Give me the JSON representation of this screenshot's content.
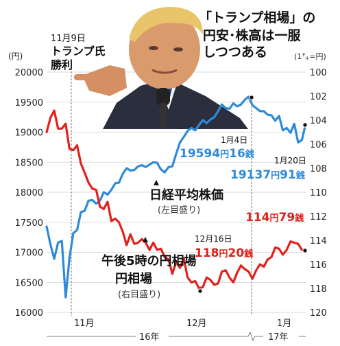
{
  "headline": {
    "line1": "「トランプ相場」の",
    "line2": "円安･株高は一服",
    "line3": "しつつある"
  },
  "chart_data": {
    "type": "line",
    "left_axis": {
      "unit_label": "(円)",
      "range": [
        16000,
        20000
      ],
      "ticks": [
        16000,
        16500,
        17000,
        17500,
        18000,
        18500,
        19000,
        19500,
        20000
      ],
      "tick_labels": [
        "16000",
        "16500",
        "17000",
        "17500",
        "18000",
        "18500",
        "19000",
        "19500",
        "20000"
      ]
    },
    "right_axis": {
      "unit_label": "(1㌦=円)",
      "range": [
        100,
        120
      ],
      "inverted": true,
      "ticks": [
        100,
        102,
        104,
        106,
        108,
        110,
        112,
        114,
        116,
        118,
        120
      ],
      "tick_labels": [
        "100",
        "102",
        "104",
        "106",
        "108",
        "110",
        "112",
        "114",
        "116",
        "118",
        "120"
      ]
    },
    "x_axis": {
      "month_labels": [
        "11月",
        "12月",
        "1月"
      ],
      "year_labels": [
        "16年",
        "17年"
      ]
    },
    "grid": true,
    "series": [
      {
        "name": "日経平均株価",
        "sub": "(左目盛り)",
        "axis": "left",
        "color": "#2e8ad8",
        "values": [
          17430,
          17130,
          16890,
          17160,
          17190,
          16250,
          16910,
          17320,
          17370,
          17670,
          17690,
          17860,
          17870,
          17810,
          17860,
          18000,
          17960,
          18040,
          18150,
          18160,
          18310,
          18400,
          18360,
          18370,
          18430,
          18450,
          18420,
          18460,
          18500,
          18490,
          18380,
          18330,
          18420,
          18430,
          18640,
          18830,
          18920,
          19020,
          19070,
          19030,
          19120,
          19200,
          19150,
          19210,
          19250,
          19350,
          19460,
          19400,
          19390,
          19480,
          19430,
          19460,
          19540,
          19590,
          19450,
          19400,
          19350,
          19350,
          19290,
          19280,
          19190,
          19270,
          19030,
          19070,
          18990,
          19140,
          18830,
          18870,
          19140
        ]
      },
      {
        "name": "午後5時の円相場",
        "sub": "(右目盛り)",
        "axis": "right",
        "color": "#e0211d",
        "values": [
          105.0,
          103.8,
          103.2,
          104.7,
          104.7,
          104.3,
          106.4,
          106.5,
          106.1,
          107.6,
          108.4,
          109.2,
          109.7,
          109.8,
          111.2,
          111.4,
          110.8,
          112.4,
          112.2,
          112.5,
          113.3,
          114.4,
          113.5,
          114.3,
          114.2,
          113.9,
          114.2,
          114.8,
          114.2,
          114.8,
          114.7,
          115.4,
          115.6,
          116.8,
          115.8,
          116.3,
          115.5,
          117.1,
          117.5,
          117.4,
          118.0,
          117.9,
          117.1,
          117.3,
          117.7,
          117.6,
          116.6,
          116.5,
          117.1,
          117.5,
          116.7,
          116.1,
          116.4,
          116.6,
          117.2,
          116.5,
          116.0,
          116.2,
          115.6,
          115.4,
          114.6,
          114.7,
          115.2,
          114.8,
          114.1,
          114.2,
          114.3,
          114.8,
          114.8
        ]
      }
    ],
    "annotations": {
      "election": {
        "date": "11月9日",
        "text": "トランプ氏",
        "text2": "勝利"
      },
      "jan4": {
        "date": "1月4日",
        "value_num": "19594",
        "value_unit1": "円",
        "value_num2": "16",
        "value_unit2": "銭"
      },
      "jan20_stock": {
        "date": "1月20日",
        "value_num": "19137",
        "value_unit1": "円",
        "value_num2": "91",
        "value_unit2": "銭"
      },
      "dec16": {
        "date": "12月16日",
        "value_num": "118",
        "value_unit1": "円",
        "value_num2": "20",
        "value_unit2": "銭"
      },
      "jan20_yen": {
        "value_num": "114",
        "value_unit1": "円",
        "value_num2": "79",
        "value_unit2": "銭"
      }
    }
  }
}
